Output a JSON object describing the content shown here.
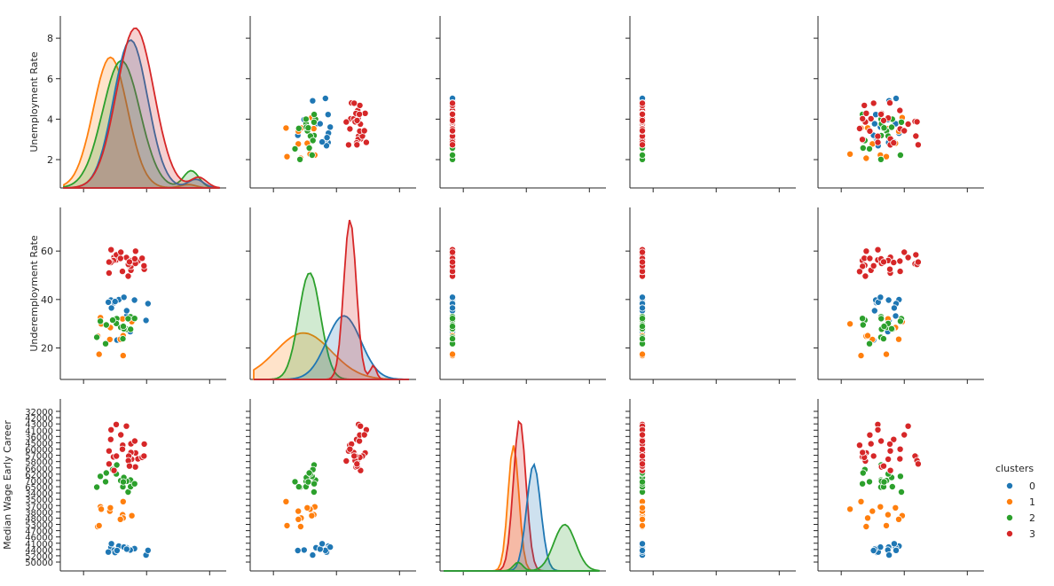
{
  "chart_data": {
    "type": "scatter",
    "subtype": "pairplot",
    "title": "",
    "legend": {
      "title": "clusters",
      "placement": "right",
      "entries": [
        "0",
        "1",
        "2",
        "3"
      ]
    },
    "colors": {
      "0": "#1f77b4",
      "1": "#ff7f0e",
      "2": "#2ca02c",
      "3": "#d62728"
    },
    "row_variables": [
      "Unemployment Rate",
      "Underemployment Rate",
      "Median Wage Early Career"
    ],
    "diagonal": "kde",
    "y_ticks": {
      "Unemployment Rate": [
        "2",
        "4",
        "6",
        "8"
      ],
      "Underemployment Rate": [
        "20",
        "40",
        "60"
      ],
      "Median Wage Early Career": [
        "32000",
        "42000",
        "43000",
        "41000",
        "36000",
        "45000",
        "60000",
        "57000",
        "58000",
        "66000",
        "62000",
        "70000",
        "65000",
        "34000",
        "35000",
        "37000",
        "38000",
        "48000",
        "53000",
        "47000",
        "46000",
        "41000",
        "44000",
        "52000",
        "50000"
      ]
    },
    "series": [
      {
        "name": "0",
        "kde_unemployment_peak": 3.6,
        "kde_underemployment_peak": 39
      },
      {
        "name": "1",
        "kde_unemployment_peak": 2.7,
        "kde_underemployment_peak": 26
      },
      {
        "name": "2",
        "kde_unemployment_peak": 3.3,
        "kde_underemployment_peak": 30
      },
      {
        "name": "3",
        "kde_unemployment_peak": 3.6,
        "kde_underemployment_peak": 55
      }
    ]
  }
}
